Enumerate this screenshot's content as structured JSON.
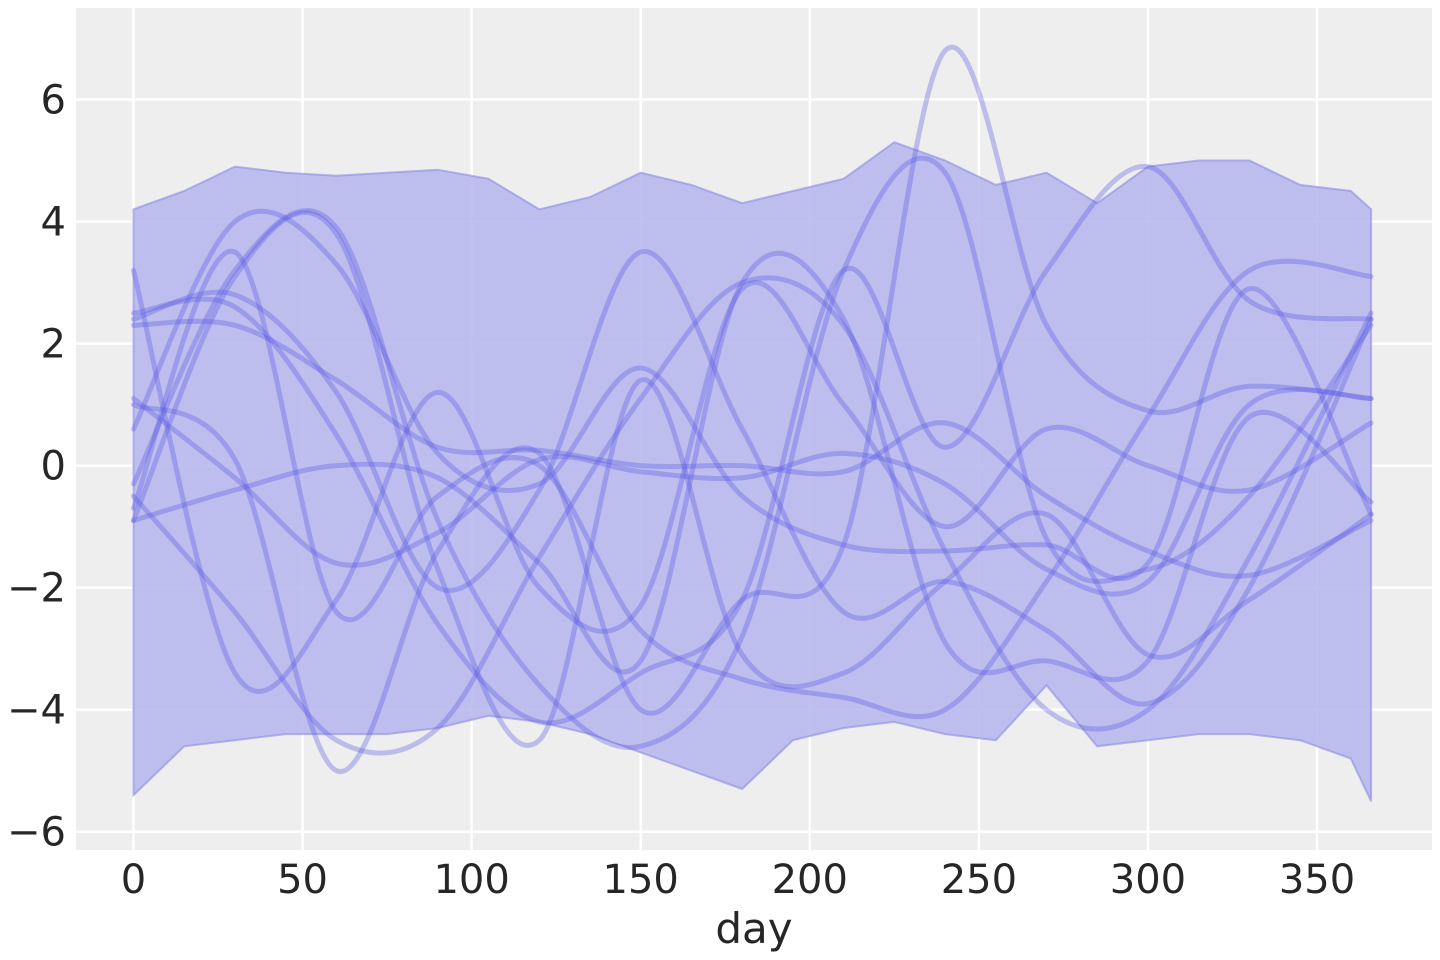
{
  "chart_data": {
    "type": "line",
    "title": "",
    "xlabel": "day",
    "ylabel": "",
    "xlim": [
      -17,
      384
    ],
    "ylim": [
      -6.3,
      7.5
    ],
    "x_ticks": [
      0,
      50,
      100,
      150,
      200,
      250,
      300,
      350
    ],
    "y_ticks": [
      -6,
      -4,
      -2,
      0,
      2,
      4,
      6
    ],
    "y_tick_labels": [
      "−6",
      "−4",
      "−2",
      "0",
      "2",
      "4",
      "6"
    ],
    "grid": true,
    "legend": "none",
    "colors": {
      "background": "#eeeeee",
      "grid": "#ffffff",
      "band_fill": "#b4b4ed",
      "band_edge": "#8c8ce6",
      "line": "#5858e6"
    },
    "band": {
      "x": [
        0,
        15,
        30,
        45,
        60,
        75,
        90,
        105,
        120,
        135,
        150,
        165,
        180,
        195,
        210,
        225,
        240,
        255,
        270,
        285,
        300,
        315,
        330,
        345,
        360,
        366
      ],
      "upper": [
        4.2,
        4.5,
        4.9,
        4.8,
        4.75,
        4.8,
        4.85,
        4.7,
        4.2,
        4.4,
        4.8,
        4.6,
        4.3,
        4.5,
        4.7,
        5.3,
        5.0,
        4.6,
        4.8,
        4.3,
        4.9,
        5.0,
        5.0,
        4.6,
        4.5,
        4.2
      ],
      "lower": [
        -5.4,
        -4.6,
        -4.5,
        -4.4,
        -4.4,
        -4.4,
        -4.3,
        -4.1,
        -4.2,
        -4.4,
        -4.7,
        -5.0,
        -5.3,
        -4.5,
        -4.3,
        -4.2,
        -4.4,
        -4.5,
        -3.6,
        -4.6,
        -4.5,
        -4.4,
        -4.4,
        -4.5,
        -4.8,
        -5.5
      ]
    },
    "series": [
      {
        "x": [
          0,
          30,
          60,
          90,
          120,
          150,
          180,
          210,
          240,
          270,
          300,
          330,
          366
        ],
        "values": [
          -0.5,
          -2.4,
          -4.5,
          -4.3,
          -1.5,
          1.1,
          3.0,
          2.3,
          -1.4,
          -4.0,
          -4.0,
          -1.5,
          2.5
        ]
      },
      {
        "x": [
          0,
          30,
          60,
          90,
          120,
          150,
          180,
          210,
          240,
          270,
          300,
          330,
          366
        ],
        "values": [
          2.3,
          2.3,
          1.4,
          0.3,
          0.25,
          0.0,
          0.0,
          -0.1,
          0.7,
          -0.5,
          -1.4,
          -1.8,
          -0.9
        ]
      },
      {
        "x": [
          0,
          30,
          60,
          90,
          120,
          150,
          180,
          210,
          240,
          270,
          300,
          330,
          366
        ],
        "values": [
          0.6,
          4.0,
          3.3,
          0.2,
          -0.3,
          1.6,
          -0.5,
          -1.3,
          -1.4,
          -1.3,
          -1.6,
          2.9,
          -0.8
        ]
      },
      {
        "x": [
          0,
          30,
          60,
          90,
          120,
          150,
          180,
          210,
          240,
          270,
          300,
          330,
          366
        ],
        "values": [
          1.1,
          -0.2,
          -1.6,
          -1.1,
          0.1,
          -0.1,
          -0.2,
          0.2,
          -0.3,
          -1.7,
          -1.9,
          1.0,
          1.1
        ]
      },
      {
        "x": [
          0,
          30,
          60,
          90,
          120,
          150,
          180,
          210,
          240,
          270,
          300,
          330,
          366
        ],
        "values": [
          -0.9,
          -0.4,
          0.0,
          -0.2,
          -1.6,
          -3.2,
          3.0,
          2.4,
          -2.9,
          -3.2,
          -3.2,
          0.8,
          -0.6
        ]
      },
      {
        "x": [
          0,
          30,
          60,
          90,
          120,
          150,
          180,
          210,
          240,
          270,
          300,
          330,
          366
        ],
        "values": [
          2.5,
          2.6,
          0.5,
          -2.6,
          -4.2,
          -3.4,
          -2.2,
          3.2,
          0.3,
          3.2,
          4.9,
          2.7,
          2.4
        ]
      },
      {
        "x": [
          0,
          30,
          60,
          90,
          120,
          150,
          180,
          210,
          240,
          270,
          300,
          330,
          366
        ],
        "values": [
          3.2,
          -3.4,
          -2.2,
          1.2,
          -2.0,
          -2.3,
          2.9,
          1.0,
          -1.0,
          0.6,
          0.0,
          -0.4,
          0.7
        ]
      },
      {
        "x": [
          0,
          30,
          60,
          90,
          120,
          150,
          180,
          210,
          240,
          270,
          300,
          330,
          366
        ],
        "values": [
          -0.3,
          3.2,
          3.9,
          -0.9,
          -3.6,
          -4.6,
          -2.8,
          3.2,
          4.8,
          -1.2,
          -1.7,
          -0.5,
          2.3
        ]
      },
      {
        "x": [
          0,
          30,
          60,
          90,
          120,
          150,
          180,
          210,
          240,
          270,
          300,
          330,
          366
        ],
        "values": [
          -0.9,
          3.1,
          3.8,
          -1.7,
          -4.5,
          1.4,
          -3.1,
          -3.4,
          -1.9,
          -0.8,
          -3.1,
          -2.2,
          -0.8
        ]
      },
      {
        "x": [
          0,
          30,
          60,
          90,
          120,
          150,
          180,
          210,
          240,
          270,
          300,
          330,
          366
        ],
        "values": [
          2.4,
          2.8,
          1.2,
          -2.0,
          -0.4,
          3.5,
          0.6,
          -2.4,
          -1.9,
          -2.7,
          -3.9,
          -2.0,
          2.4
        ]
      },
      {
        "x": [
          0,
          30,
          60,
          90,
          120,
          150,
          180,
          210,
          240,
          270,
          300,
          330,
          366
        ],
        "values": [
          -0.7,
          3.5,
          -2.4,
          -0.5,
          0.0,
          -2.7,
          -3.5,
          -3.8,
          -4.0,
          -1.9,
          0.8,
          3.2,
          3.1
        ]
      },
      {
        "x": [
          0,
          30,
          60,
          90,
          120,
          150,
          180,
          210,
          240,
          270,
          300,
          330,
          366
        ],
        "values": [
          1.0,
          0.1,
          -5.0,
          -1.4,
          0.2,
          -4.0,
          -2.2,
          -1.3,
          6.8,
          2.3,
          0.9,
          1.3,
          1.1
        ]
      }
    ]
  }
}
